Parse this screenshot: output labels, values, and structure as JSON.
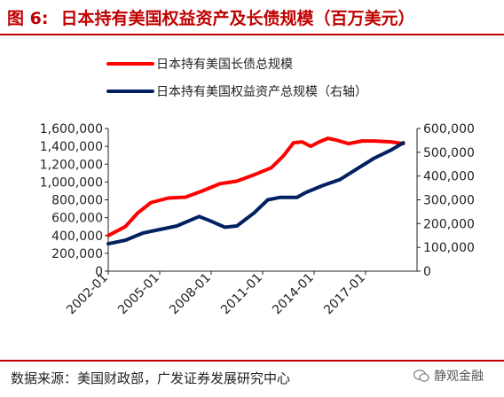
{
  "header": {
    "figure_label": "图 6:",
    "title": "日本持有美国权益资产及长债规模（百万美元）"
  },
  "footer": {
    "source": "数据来源：美国财政部，广发证券发展研究中心",
    "watermark": "静观金融"
  },
  "colors": {
    "accent": "#c00000",
    "bond_series": "#ff0000",
    "equity_series": "#002060"
  },
  "chart_data": {
    "type": "line",
    "title": "",
    "x_range": [
      2002.0,
      2020.0
    ],
    "x_ticks": [
      {
        "x": 2002.0,
        "label": "2002-01"
      },
      {
        "x": 2005.0,
        "label": "2005-01"
      },
      {
        "x": 2008.0,
        "label": "2008-01"
      },
      {
        "x": 2011.0,
        "label": "2011-01"
      },
      {
        "x": 2014.0,
        "label": "2014-01"
      },
      {
        "x": 2017.0,
        "label": "2017-01"
      }
    ],
    "y_left": {
      "min": 0,
      "max": 1600000,
      "tick_labels": [
        "0",
        "200,000",
        "400,000",
        "600,000",
        "800,000",
        "1,000,000",
        "1,200,000",
        "1,400,000",
        "1,600,000"
      ]
    },
    "y_right": {
      "min": 0,
      "max": 600000,
      "tick_labels": [
        "0",
        "100,000",
        "200,000",
        "300,000",
        "400,000",
        "500,000",
        "600,000"
      ]
    },
    "legend_position": "top-left",
    "series": [
      {
        "name": "日本持有美国长债总规模",
        "axis": "left",
        "color": "#ff0000",
        "points": [
          [
            2002.0,
            400000
          ],
          [
            2003.0,
            500000
          ],
          [
            2003.7,
            650000
          ],
          [
            2004.5,
            770000
          ],
          [
            2005.5,
            820000
          ],
          [
            2006.5,
            830000
          ],
          [
            2007.5,
            900000
          ],
          [
            2008.5,
            980000
          ],
          [
            2009.5,
            1010000
          ],
          [
            2010.5,
            1080000
          ],
          [
            2011.5,
            1160000
          ],
          [
            2012.2,
            1290000
          ],
          [
            2012.8,
            1440000
          ],
          [
            2013.3,
            1450000
          ],
          [
            2013.8,
            1400000
          ],
          [
            2014.3,
            1450000
          ],
          [
            2014.8,
            1490000
          ],
          [
            2015.3,
            1470000
          ],
          [
            2016.0,
            1430000
          ],
          [
            2016.8,
            1460000
          ],
          [
            2017.5,
            1460000
          ],
          [
            2018.5,
            1450000
          ],
          [
            2019.2,
            1430000
          ]
        ]
      },
      {
        "name": "日本持有美国权益资产总规模（右轴）",
        "axis": "right",
        "color": "#002060",
        "points": [
          [
            2002.0,
            115000
          ],
          [
            2003.0,
            130000
          ],
          [
            2004.0,
            160000
          ],
          [
            2005.0,
            175000
          ],
          [
            2006.0,
            190000
          ],
          [
            2007.3,
            230000
          ],
          [
            2008.0,
            210000
          ],
          [
            2008.8,
            185000
          ],
          [
            2009.5,
            190000
          ],
          [
            2010.5,
            245000
          ],
          [
            2011.3,
            300000
          ],
          [
            2012.0,
            310000
          ],
          [
            2013.0,
            310000
          ],
          [
            2013.5,
            330000
          ],
          [
            2014.5,
            360000
          ],
          [
            2015.5,
            385000
          ],
          [
            2016.5,
            430000
          ],
          [
            2017.5,
            475000
          ],
          [
            2018.5,
            510000
          ],
          [
            2019.2,
            540000
          ]
        ]
      }
    ]
  }
}
